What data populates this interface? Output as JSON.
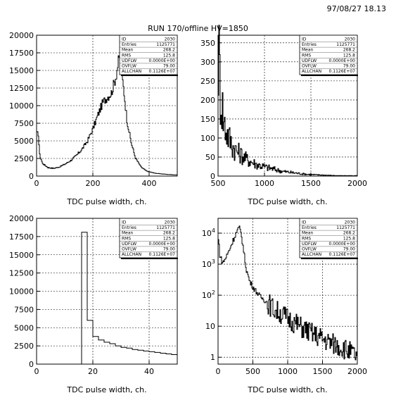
{
  "header": {
    "date": "97/08/27   18.13",
    "title": "RUN 170/offline HV=1850"
  },
  "stats": {
    "labels": [
      "ID",
      "Entries",
      "Mean",
      "RMS",
      "UDFLW",
      "OVFLW",
      "ALLCHAN"
    ],
    "values": [
      "2030",
      "1125771",
      "268.2",
      "125.8",
      "0.0000E+00",
      "79.00",
      "0.1126E+07"
    ]
  },
  "chart_data": [
    {
      "type": "histogram",
      "panel": "top-left",
      "xlabel": "TDC pulse width, ch.",
      "ylabel": "",
      "xlim": [
        0,
        500
      ],
      "ylim": [
        0,
        20000
      ],
      "xticks": [
        0,
        200,
        400
      ],
      "yticks": [
        0,
        2500,
        5000,
        7500,
        10000,
        12500,
        15000,
        17500,
        20000
      ],
      "grid": true,
      "stats_box": "top-right",
      "x": [
        5,
        10,
        20,
        40,
        60,
        80,
        100,
        120,
        140,
        160,
        180,
        200,
        220,
        235,
        250,
        265,
        280,
        290,
        295,
        300,
        310,
        320,
        335,
        350,
        370,
        390,
        420,
        460,
        500
      ],
      "values": [
        6000,
        3000,
        1800,
        1200,
        1100,
        1300,
        1700,
        2200,
        2900,
        3800,
        5000,
        6800,
        9000,
        10500,
        11200,
        11800,
        14000,
        16200,
        16700,
        15000,
        11800,
        8000,
        4800,
        2600,
        1300,
        700,
        400,
        250,
        150
      ]
    },
    {
      "type": "histogram",
      "panel": "top-right",
      "xlabel": "TDC pulse width, ch.",
      "ylabel": "",
      "xlim": [
        500,
        2000
      ],
      "ylim": [
        0,
        370
      ],
      "xticks": [
        500,
        1000,
        1500,
        2000
      ],
      "yticks": [
        0,
        50,
        100,
        150,
        200,
        250,
        300,
        350
      ],
      "grid": true,
      "stats_box": "top-right",
      "x": [
        500,
        510,
        520,
        540,
        560,
        600,
        650,
        700,
        800,
        900,
        1000,
        1100,
        1200,
        1300,
        1400,
        1500,
        1600,
        1700,
        1800,
        2000
      ],
      "values": [
        320,
        300,
        230,
        190,
        140,
        110,
        80,
        65,
        45,
        32,
        24,
        18,
        12,
        9,
        6,
        4,
        3,
        2,
        1,
        1
      ]
    },
    {
      "type": "histogram",
      "panel": "bottom-left",
      "xlabel": "TDC pulse width, ch.",
      "ylabel": "",
      "xlim": [
        0,
        50
      ],
      "ylim": [
        0,
        20000
      ],
      "xticks": [
        0,
        20,
        40
      ],
      "yticks": [
        0,
        2500,
        5000,
        7500,
        10000,
        12500,
        15000,
        17500,
        20000
      ],
      "grid": true,
      "stats_box": "top-right",
      "bin_width": 2,
      "bin_edges": [
        16,
        18,
        20,
        22,
        24,
        26,
        28,
        30,
        32,
        34,
        36,
        38,
        40,
        42,
        44,
        46,
        48,
        50
      ],
      "values": [
        18100,
        6000,
        3800,
        3300,
        3000,
        2800,
        2500,
        2300,
        2200,
        2000,
        1900,
        1800,
        1700,
        1600,
        1500,
        1400,
        1300
      ]
    },
    {
      "type": "histogram",
      "panel": "bottom-right",
      "xlabel": "TDC pulse width, ch.",
      "ylabel": "",
      "xlim": [
        0,
        2000
      ],
      "ylim": [
        0.6,
        30000
      ],
      "yscale": "log",
      "xticks": [
        0,
        500,
        1000,
        1500,
        2000
      ],
      "yticks": [
        1,
        10,
        100,
        1000,
        10000
      ],
      "grid": true,
      "stats_box": "top-right",
      "x": [
        5,
        20,
        60,
        100,
        150,
        200,
        250,
        280,
        300,
        330,
        360,
        400,
        450,
        500,
        600,
        700,
        800,
        1000,
        1200,
        1400,
        1600,
        1800,
        2000
      ],
      "values": [
        6000,
        2000,
        1100,
        1500,
        2600,
        5000,
        9500,
        13000,
        15000,
        9000,
        3000,
        700,
        280,
        180,
        90,
        60,
        35,
        18,
        9,
        5,
        3,
        2,
        1
      ]
    }
  ]
}
